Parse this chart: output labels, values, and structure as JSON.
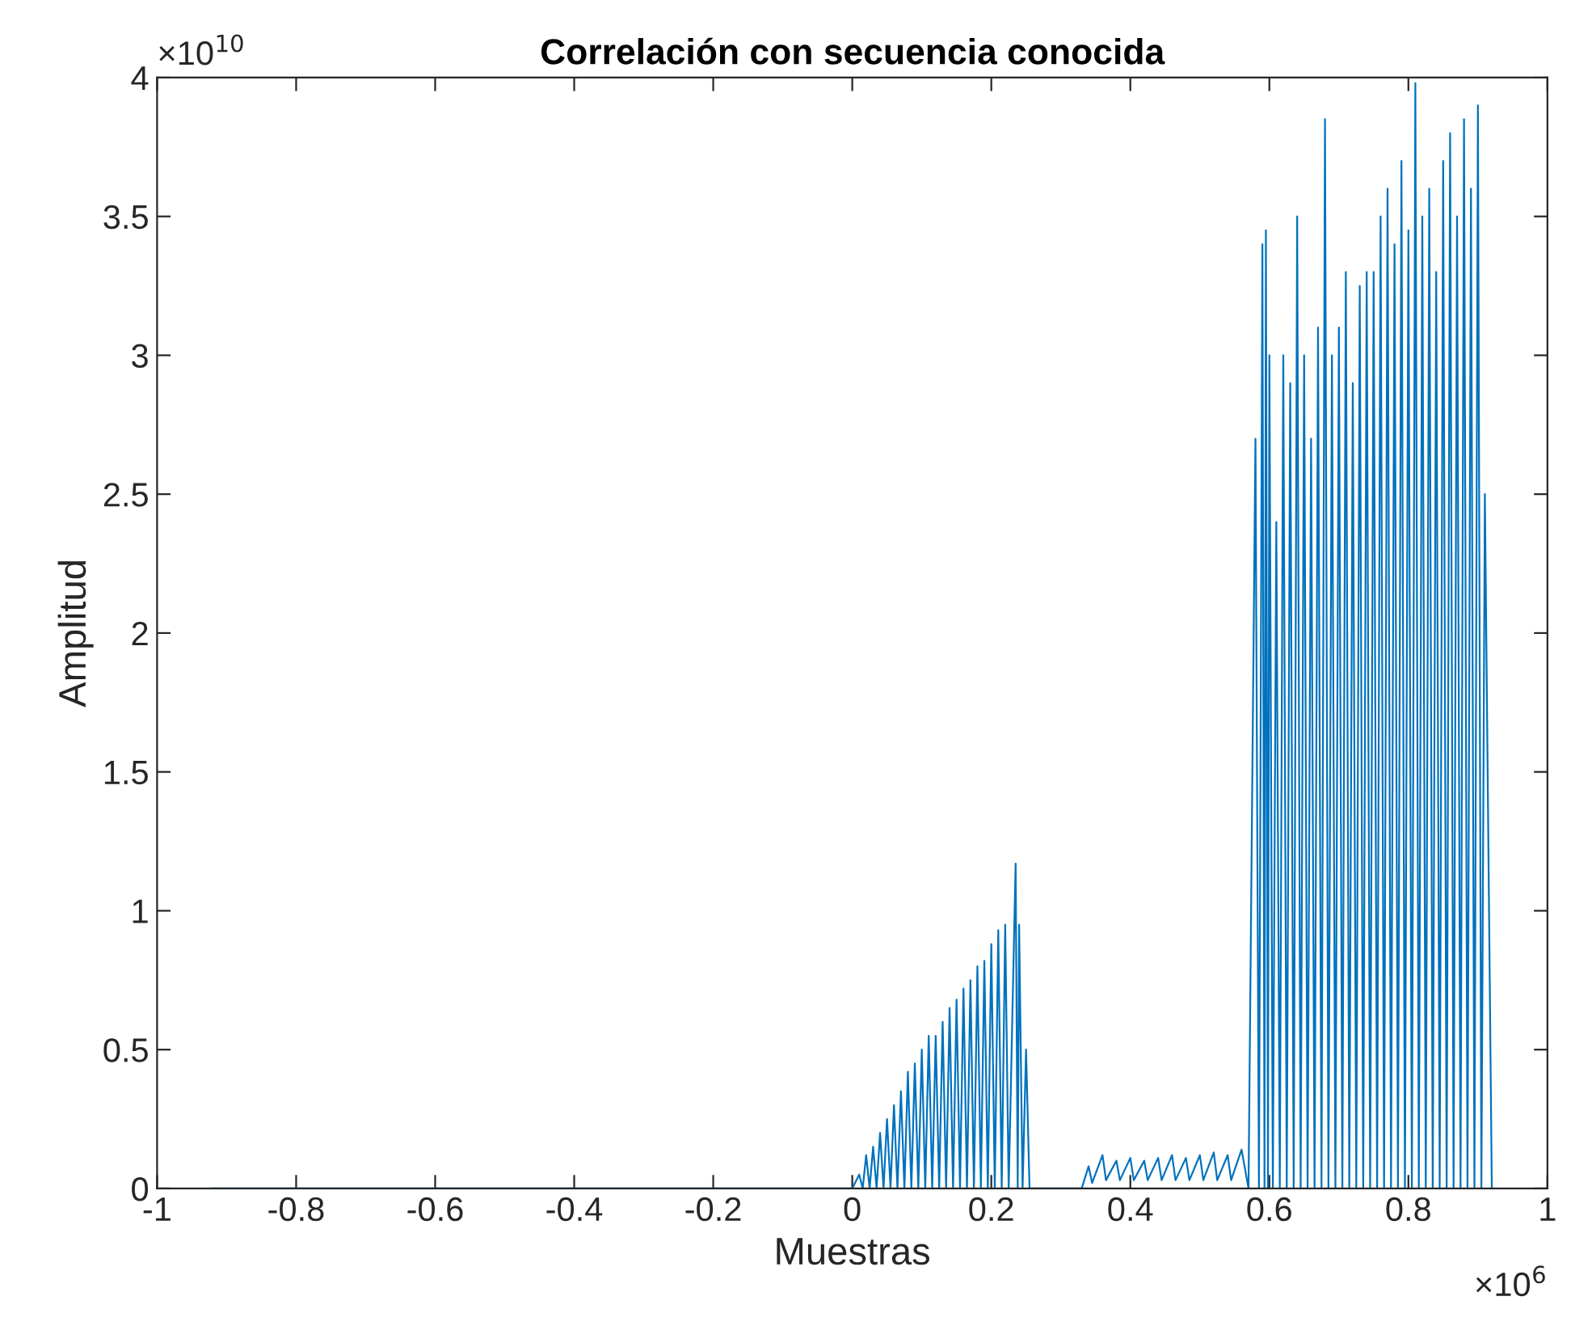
{
  "chart_data": {
    "type": "line",
    "title": "Correlación con secuencia conocida",
    "xlabel": "Muestras",
    "ylabel": "Amplitud",
    "annotations": [
      "×10$^{10}$",
      "×10$^{6}$"
    ],
    "xlim": [
      -1,
      1
    ],
    "ylim": [
      0,
      4
    ],
    "xticks": [
      -1,
      -0.8,
      -0.6,
      -0.4,
      -0.2,
      0,
      0.2,
      0.4,
      0.6,
      0.8,
      1
    ],
    "yticks": [
      0,
      0.5,
      1,
      1.5,
      2,
      2.5,
      3,
      3.5,
      4
    ],
    "grid": false,
    "marker": "none",
    "line_style": "solid",
    "series": [
      {
        "color": "#0072bd",
        "x": [
          -0.92,
          0,
          0.01,
          0.015,
          0.02,
          0.025,
          0.03,
          0.035,
          0.04,
          0.045,
          0.05,
          0.055,
          0.06,
          0.065,
          0.07,
          0.075,
          0.08,
          0.085,
          0.09,
          0.095,
          0.1,
          0.105,
          0.11,
          0.115,
          0.12,
          0.125,
          0.13,
          0.135,
          0.14,
          0.145,
          0.15,
          0.155,
          0.16,
          0.165,
          0.17,
          0.175,
          0.18,
          0.185,
          0.19,
          0.195,
          0.2,
          0.205,
          0.21,
          0.215,
          0.22,
          0.225,
          0.235,
          0.238,
          0.24,
          0.245,
          0.25,
          0.255,
          0.33,
          0.34,
          0.345,
          0.36,
          0.365,
          0.38,
          0.385,
          0.4,
          0.405,
          0.42,
          0.425,
          0.44,
          0.445,
          0.46,
          0.465,
          0.48,
          0.485,
          0.5,
          0.505,
          0.52,
          0.525,
          0.54,
          0.545,
          0.56,
          0.57,
          0.58,
          0.585,
          0.59,
          0.593,
          0.595,
          0.598,
          0.6,
          0.605,
          0.61,
          0.615,
          0.62,
          0.625,
          0.63,
          0.635,
          0.64,
          0.645,
          0.65,
          0.655,
          0.66,
          0.665,
          0.67,
          0.675,
          0.68,
          0.685,
          0.69,
          0.695,
          0.7,
          0.705,
          0.71,
          0.715,
          0.72,
          0.725,
          0.73,
          0.735,
          0.74,
          0.745,
          0.75,
          0.755,
          0.76,
          0.765,
          0.77,
          0.775,
          0.78,
          0.785,
          0.79,
          0.795,
          0.8,
          0.805,
          0.81,
          0.815,
          0.82,
          0.825,
          0.83,
          0.835,
          0.84,
          0.845,
          0.85,
          0.855,
          0.86,
          0.865,
          0.87,
          0.875,
          0.88,
          0.885,
          0.89,
          0.895,
          0.9,
          0.905,
          0.91,
          0.92
        ],
        "values": [
          0,
          0,
          0.05,
          0,
          0.12,
          0,
          0.15,
          0,
          0.2,
          0,
          0.25,
          0,
          0.3,
          0,
          0.35,
          0,
          0.42,
          0,
          0.45,
          0,
          0.5,
          0,
          0.55,
          0,
          0.55,
          0,
          0.6,
          0,
          0.65,
          0,
          0.68,
          0,
          0.72,
          0,
          0.75,
          0,
          0.8,
          0,
          0.82,
          0,
          0.88,
          0,
          0.93,
          0,
          0.95,
          0,
          1.17,
          0,
          0.95,
          0,
          0.5,
          0,
          0,
          0.08,
          0.02,
          0.12,
          0.03,
          0.1,
          0.03,
          0.11,
          0.03,
          0.1,
          0.03,
          0.11,
          0.03,
          0.12,
          0.03,
          0.11,
          0.03,
          0.12,
          0.03,
          0.13,
          0.03,
          0.12,
          0.03,
          0.14,
          0,
          2.7,
          0,
          3.4,
          0,
          3.45,
          0,
          3.0,
          0,
          2.4,
          0,
          3.0,
          0,
          2.9,
          0,
          3.5,
          0,
          3.0,
          0,
          2.7,
          0,
          3.1,
          0,
          3.85,
          0,
          3.0,
          0,
          3.1,
          0,
          3.3,
          0,
          2.9,
          0,
          3.25,
          0,
          3.3,
          0,
          3.3,
          0,
          3.5,
          0,
          3.6,
          0,
          3.4,
          0,
          3.7,
          0,
          3.45,
          0,
          3.98,
          0,
          3.5,
          0,
          3.6,
          0,
          3.3,
          0,
          3.7,
          0,
          3.8,
          0,
          3.5,
          0,
          3.85,
          0,
          3.6,
          0,
          3.9,
          0,
          2.5,
          0
        ]
      }
    ]
  }
}
